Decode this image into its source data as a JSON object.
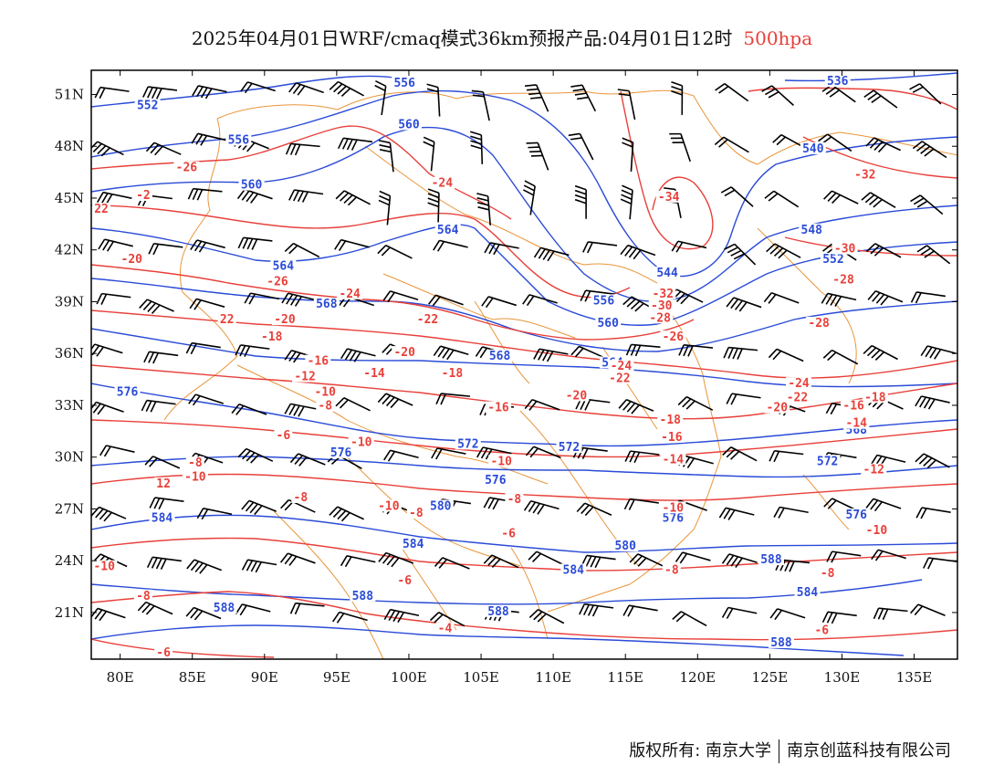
{
  "title": {
    "main": "2025年04月01日WRF/cmaq模式36km预报产品:04月01日12时",
    "level": "500hpa"
  },
  "axes": {
    "lon_ticks": [
      "80E",
      "85E",
      "90E",
      "95E",
      "100E",
      "105E",
      "110E",
      "115E",
      "120E",
      "125E",
      "130E",
      "135E"
    ],
    "lat_ticks": [
      "51N",
      "48N",
      "45N",
      "42N",
      "39N",
      "36N",
      "33N",
      "30N",
      "27N",
      "24N",
      "21N"
    ],
    "lon_values": [
      80,
      85,
      90,
      95,
      100,
      105,
      110,
      115,
      120,
      125,
      130,
      135
    ],
    "lat_values": [
      51,
      48,
      45,
      42,
      39,
      36,
      33,
      30,
      27,
      24,
      21
    ],
    "lon_range": [
      78,
      138
    ],
    "lat_range": [
      18.3,
      52.4
    ]
  },
  "colors": {
    "height_contour": "#2a4bd7",
    "temperature_contour": "#e8403a",
    "border": "#e8953a",
    "wind_barb": "#000000"
  },
  "height_labels": [
    {
      "text": "556",
      "lon": 99.7,
      "lat": 51.5
    },
    {
      "text": "552",
      "lon": 81.9,
      "lat": 50.2
    },
    {
      "text": "556",
      "lon": 88.2,
      "lat": 48.2
    },
    {
      "text": "560",
      "lon": 100.0,
      "lat": 49.1
    },
    {
      "text": "560",
      "lon": 89.1,
      "lat": 45.6
    },
    {
      "text": "564",
      "lon": 102.7,
      "lat": 43.0
    },
    {
      "text": "564",
      "lon": 91.3,
      "lat": 40.9
    },
    {
      "text": "568",
      "lon": 94.3,
      "lat": 38.7
    },
    {
      "text": "556",
      "lon": 113.5,
      "lat": 38.9
    },
    {
      "text": "560",
      "lon": 113.8,
      "lat": 37.6
    },
    {
      "text": "568",
      "lon": 106.3,
      "lat": 35.7
    },
    {
      "text": "564",
      "lon": 114.1,
      "lat": 35.3
    },
    {
      "text": "576",
      "lon": 80.5,
      "lat": 33.6
    },
    {
      "text": "572",
      "lon": 104.1,
      "lat": 30.6
    },
    {
      "text": "572",
      "lon": 111.1,
      "lat": 30.4
    },
    {
      "text": "576",
      "lon": 95.3,
      "lat": 30.1
    },
    {
      "text": "576",
      "lon": 106.0,
      "lat": 28.5
    },
    {
      "text": "580",
      "lon": 102.2,
      "lat": 27.0
    },
    {
      "text": "584",
      "lon": 82.9,
      "lat": 26.3
    },
    {
      "text": "584",
      "lon": 100.3,
      "lat": 24.8
    },
    {
      "text": "580",
      "lon": 115.0,
      "lat": 24.7
    },
    {
      "text": "584",
      "lon": 111.4,
      "lat": 23.3
    },
    {
      "text": "588",
      "lon": 87.2,
      "lat": 21.1
    },
    {
      "text": "588",
      "lon": 96.8,
      "lat": 21.8
    },
    {
      "text": "588",
      "lon": 106.2,
      "lat": 20.9
    },
    {
      "text": "588",
      "lon": 125.1,
      "lat": 23.9
    },
    {
      "text": "584",
      "lon": 127.6,
      "lat": 22.0
    },
    {
      "text": "588",
      "lon": 125.8,
      "lat": 19.1
    },
    {
      "text": "536",
      "lon": 129.7,
      "lat": 51.6
    },
    {
      "text": "540",
      "lon": 128.0,
      "lat": 47.7
    },
    {
      "text": "548",
      "lon": 127.9,
      "lat": 43.0
    },
    {
      "text": "552",
      "lon": 129.4,
      "lat": 41.3
    },
    {
      "text": "544",
      "lon": 117.9,
      "lat": 40.5
    },
    {
      "text": "572",
      "lon": 129.0,
      "lat": 29.6
    },
    {
      "text": "576",
      "lon": 131.0,
      "lat": 26.5
    },
    {
      "text": "576",
      "lon": 118.3,
      "lat": 26.3
    },
    {
      "text": "568",
      "lon": 131.0,
      "lat": 31.4
    }
  ],
  "temperature_labels": [
    {
      "text": "-26",
      "lon": 84.6,
      "lat": 46.6
    },
    {
      "text": "-2",
      "lon": 81.6,
      "lat": 45.0
    },
    {
      "text": "22",
      "lon": 78.7,
      "lat": 44.2
    },
    {
      "text": "-24",
      "lon": 102.3,
      "lat": 45.7
    },
    {
      "text": "-34",
      "lon": 118.0,
      "lat": 44.9
    },
    {
      "text": "-32",
      "lon": 131.6,
      "lat": 46.2
    },
    {
      "text": "-30",
      "lon": 130.2,
      "lat": 41.9
    },
    {
      "text": "-28",
      "lon": 130.1,
      "lat": 40.1
    },
    {
      "text": "-20",
      "lon": 80.8,
      "lat": 41.3
    },
    {
      "text": "-26",
      "lon": 90.9,
      "lat": 40.0
    },
    {
      "text": "-24",
      "lon": 95.9,
      "lat": 39.3
    },
    {
      "text": "-32",
      "lon": 117.6,
      "lat": 39.3
    },
    {
      "text": "-30",
      "lon": 117.5,
      "lat": 38.6
    },
    {
      "text": "-28",
      "lon": 117.4,
      "lat": 37.9
    },
    {
      "text": "-26",
      "lon": 118.3,
      "lat": 36.8
    },
    {
      "text": "22",
      "lon": 87.4,
      "lat": 37.8
    },
    {
      "text": "-20",
      "lon": 91.4,
      "lat": 37.8
    },
    {
      "text": "-22",
      "lon": 101.3,
      "lat": 37.8
    },
    {
      "text": "-18",
      "lon": 90.5,
      "lat": 36.8
    },
    {
      "text": "-28",
      "lon": 128.4,
      "lat": 37.6
    },
    {
      "text": "-20",
      "lon": 99.7,
      "lat": 35.9
    },
    {
      "text": "-16",
      "lon": 93.7,
      "lat": 35.4
    },
    {
      "text": "-12",
      "lon": 92.8,
      "lat": 34.5
    },
    {
      "text": "-14",
      "lon": 97.6,
      "lat": 34.7
    },
    {
      "text": "-18",
      "lon": 103.0,
      "lat": 34.7
    },
    {
      "text": "-24",
      "lon": 114.7,
      "lat": 35.1
    },
    {
      "text": "-22",
      "lon": 114.6,
      "lat": 34.4
    },
    {
      "text": "-24",
      "lon": 127.0,
      "lat": 34.1
    },
    {
      "text": "-22",
      "lon": 126.9,
      "lat": 33.3
    },
    {
      "text": "-20",
      "lon": 125.5,
      "lat": 32.7
    },
    {
      "text": "-18",
      "lon": 132.3,
      "lat": 33.3
    },
    {
      "text": "-16",
      "lon": 130.8,
      "lat": 32.8
    },
    {
      "text": "-10",
      "lon": 94.2,
      "lat": 33.6
    },
    {
      "text": "-8",
      "lon": 94.2,
      "lat": 32.8
    },
    {
      "text": "-16",
      "lon": 106.2,
      "lat": 32.7
    },
    {
      "text": "-20",
      "lon": 111.6,
      "lat": 33.4
    },
    {
      "text": "-18",
      "lon": 118.1,
      "lat": 32.0
    },
    {
      "text": "-16",
      "lon": 118.2,
      "lat": 31.0
    },
    {
      "text": "-14",
      "lon": 131.0,
      "lat": 31.8
    },
    {
      "text": "-6",
      "lon": 91.3,
      "lat": 31.1
    },
    {
      "text": "-10",
      "lon": 96.7,
      "lat": 30.7
    },
    {
      "text": "-8",
      "lon": 85.2,
      "lat": 29.5
    },
    {
      "text": "-10",
      "lon": 106.4,
      "lat": 29.6
    },
    {
      "text": "-14",
      "lon": 118.3,
      "lat": 29.7
    },
    {
      "text": "-12",
      "lon": 132.2,
      "lat": 29.1
    },
    {
      "text": "-10",
      "lon": 85.2,
      "lat": 28.7
    },
    {
      "text": "12",
      "lon": 83.0,
      "lat": 28.3
    },
    {
      "text": "-8",
      "lon": 92.5,
      "lat": 27.5
    },
    {
      "text": "-10",
      "lon": 98.6,
      "lat": 27.0
    },
    {
      "text": "-8",
      "lon": 100.5,
      "lat": 26.6
    },
    {
      "text": "-8",
      "lon": 107.3,
      "lat": 27.4
    },
    {
      "text": "-10",
      "lon": 118.3,
      "lat": 26.9
    },
    {
      "text": "-10",
      "lon": 132.4,
      "lat": 25.6
    },
    {
      "text": "-6",
      "lon": 106.9,
      "lat": 25.4
    },
    {
      "text": "-10",
      "lon": 78.9,
      "lat": 23.5
    },
    {
      "text": "-8",
      "lon": 118.2,
      "lat": 23.3
    },
    {
      "text": "-8",
      "lon": 129.0,
      "lat": 23.1
    },
    {
      "text": "-6",
      "lon": 99.7,
      "lat": 22.7
    },
    {
      "text": "-8",
      "lon": 81.6,
      "lat": 21.8
    },
    {
      "text": "-4",
      "lon": 102.5,
      "lat": 19.9
    },
    {
      "text": "-6",
      "lon": 128.6,
      "lat": 19.8
    },
    {
      "text": "-6",
      "lon": 83.0,
      "lat": 18.5
    }
  ],
  "footer": {
    "left": "版权所有: 南京大学",
    "right": "南京创蓝科技有限公司"
  }
}
